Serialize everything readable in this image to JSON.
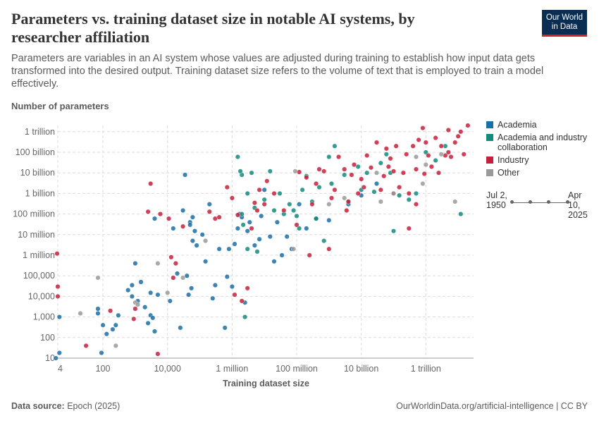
{
  "header": {
    "title": "Parameters vs. training dataset size in notable AI systems, by researcher affiliation",
    "subtitle": "Parameters are variables in an AI system whose values are adjusted during training to establish how input data gets transformed into the desired output. Training dataset size refers to the volume of text that is employed to train a model effectively.",
    "logo_line1": "Our World",
    "logo_line2": "in Data"
  },
  "legend": {
    "items": [
      {
        "label": "Academia",
        "color": "#1a6fa3"
      },
      {
        "label": "Academia and industry collaboration",
        "color": "#148a7c"
      },
      {
        "label": "Industry",
        "color": "#c5203b"
      },
      {
        "label": "Other",
        "color": "#9a9a9a"
      }
    ]
  },
  "timeline": {
    "start": "Jul 2, 1950",
    "end": "Apr 10, 2025"
  },
  "footer": {
    "source_label": "Data source:",
    "source": "Epoch (2025)",
    "url": "OurWorldinData.org/artificial-intelligence | CC BY"
  },
  "chart_data": {
    "type": "scatter",
    "title": "Parameters vs. training dataset size in notable AI systems, by researcher affiliation",
    "xlabel": "Training dataset size",
    "ylabel": "Number of parameters",
    "x_scale": "log",
    "y_scale": "log",
    "xlim": [
      4,
      30000000000000
    ],
    "ylim": [
      10,
      2000000000000
    ],
    "x_ticks": [
      {
        "value": 4,
        "label": "4"
      },
      {
        "value": 100,
        "label": "100"
      },
      {
        "value": 10000,
        "label": "10,000"
      },
      {
        "value": 1000000,
        "label": "1 million"
      },
      {
        "value": 100000000,
        "label": "100 million"
      },
      {
        "value": 10000000000,
        "label": "10 billion"
      },
      {
        "value": 1000000000000,
        "label": "1 trillion"
      }
    ],
    "y_ticks": [
      {
        "value": 10,
        "label": "10"
      },
      {
        "value": 100,
        "label": "100"
      },
      {
        "value": 1000,
        "label": "1,000"
      },
      {
        "value": 10000,
        "label": "10,000"
      },
      {
        "value": 100000,
        "label": "100,000"
      },
      {
        "value": 1000000,
        "label": "1 million"
      },
      {
        "value": 10000000,
        "label": "10 million"
      },
      {
        "value": 100000000,
        "label": "100 million"
      },
      {
        "value": 1000000000,
        "label": "1 billion"
      },
      {
        "value": 10000000000,
        "label": "10 billion"
      },
      {
        "value": 100000000000,
        "label": "100 billion"
      },
      {
        "value": 1000000000000,
        "label": "1 trillion"
      }
    ],
    "series": [
      {
        "name": "Academia",
        "color": "#1a6fa3",
        "points": [
          [
            3.5,
            10
          ],
          [
            4.5,
            18
          ],
          [
            4.5,
            1000
          ],
          [
            70,
            1500
          ],
          [
            70,
            2500
          ],
          [
            90,
            18
          ],
          [
            100,
            400
          ],
          [
            130,
            150
          ],
          [
            200,
            250
          ],
          [
            250,
            400
          ],
          [
            300,
            1200
          ],
          [
            600,
            20000
          ],
          [
            800,
            10000
          ],
          [
            800,
            35000
          ],
          [
            1000,
            400000
          ],
          [
            1200,
            6000
          ],
          [
            1500,
            50000
          ],
          [
            2000,
            3000
          ],
          [
            2500,
            500
          ],
          [
            3000,
            15000
          ],
          [
            3000,
            1200
          ],
          [
            3500,
            900
          ],
          [
            4000,
            60000000
          ],
          [
            4000,
            200
          ],
          [
            5000,
            12000
          ],
          [
            12000,
            6000
          ],
          [
            15000,
            20000000
          ],
          [
            20000,
            130000
          ],
          [
            25000,
            300
          ],
          [
            30000,
            150000000
          ],
          [
            35000,
            8000000000
          ],
          [
            40000,
            100000
          ],
          [
            45000,
            12000
          ],
          [
            50000,
            40000000
          ],
          [
            50000,
            30000000
          ],
          [
            55000,
            25000
          ],
          [
            60000,
            5000000
          ],
          [
            60000,
            70000000
          ],
          [
            70000,
            15000000
          ],
          [
            80000,
            3000000
          ],
          [
            120000,
            10000000
          ],
          [
            150000,
            500000
          ],
          [
            200000,
            300000000
          ],
          [
            250000,
            8000
          ],
          [
            300000,
            35000
          ],
          [
            400000,
            2000000
          ],
          [
            600000,
            300
          ],
          [
            700000,
            90000
          ],
          [
            800000,
            2000000
          ],
          [
            1000000,
            30000
          ],
          [
            1200000,
            3500000
          ],
          [
            1500000,
            20000000
          ],
          [
            1700000,
            100000000
          ],
          [
            2000000,
            70000000
          ],
          [
            2500000,
            5000
          ],
          [
            3000000,
            15000000
          ],
          [
            3500000,
            40000000
          ],
          [
            5000000,
            3000000
          ],
          [
            7000000,
            6000000
          ],
          [
            8000000,
            80000000
          ],
          [
            10000000,
            1500000000
          ],
          [
            15000000,
            8000000
          ],
          [
            20000000,
            500000
          ],
          [
            25000000,
            40000000
          ],
          [
            35000000,
            1000000
          ],
          [
            50000000,
            8000000
          ],
          [
            70000000,
            2000000
          ],
          [
            120000000,
            300000000
          ],
          [
            200000000,
            20000000
          ],
          [
            400000000,
            60000000
          ],
          [
            1000000000,
            50000000
          ],
          [
            4000000000,
            300000000
          ],
          [
            10000000000,
            800000000
          ],
          [
            30000000000,
            3000000000
          ]
        ]
      },
      {
        "name": "Academia and industry collaboration",
        "color": "#148a7c",
        "points": [
          [
            2000000,
            8000000000
          ],
          [
            1500000,
            60000000000
          ],
          [
            1800000,
            12000000000
          ],
          [
            2000000,
            100000000
          ],
          [
            2200000,
            30000000
          ],
          [
            2500000,
            1000
          ],
          [
            3000000,
            2000000
          ],
          [
            3000000,
            1000000000
          ],
          [
            4000000,
            10000000000
          ],
          [
            5000000,
            200000000
          ],
          [
            6000000,
            1500000
          ],
          [
            10000000,
            500000000
          ],
          [
            15000000,
            12000000000
          ],
          [
            20000000,
            150000000
          ],
          [
            30000000,
            1000000000
          ],
          [
            40000000,
            100000000
          ],
          [
            60000000,
            300000000
          ],
          [
            80000000,
            150000000
          ],
          [
            100000000,
            80000000
          ],
          [
            120000000,
            20000000
          ],
          [
            150000000,
            1500000000
          ],
          [
            200000000,
            7000000000
          ],
          [
            300000000,
            400000000
          ],
          [
            400000000,
            60000000
          ],
          [
            500000000,
            2000000000
          ],
          [
            700000000,
            5000000
          ],
          [
            1000000000,
            60000000000
          ],
          [
            1200000000,
            3000000000
          ],
          [
            1500000000,
            200000000000
          ],
          [
            3000000000,
            8000000000
          ],
          [
            4000000000,
            400000000
          ],
          [
            8000000000,
            20000000000
          ],
          [
            10000000000,
            1500000000
          ],
          [
            15000000000,
            10000000000
          ],
          [
            25000000000,
            1200000000
          ],
          [
            40000000000,
            30000000000
          ],
          [
            60000000000,
            80000000000
          ],
          [
            80000000000,
            10000000000
          ],
          [
            100000000000,
            15000000
          ],
          [
            150000000000,
            800000000
          ],
          [
            300000000000,
            500000000
          ],
          [
            500000000000,
            1000000000
          ],
          [
            1000000000000,
            100000000000
          ],
          [
            2000000000000,
            40000000000
          ],
          [
            4000000000000,
            200000000000
          ],
          [
            12000000000000,
            100000000
          ]
        ]
      },
      {
        "name": "Industry",
        "color": "#c5203b",
        "points": [
          [
            3.8,
            1200000
          ],
          [
            4,
            30000
          ],
          [
            4,
            10000
          ],
          [
            30,
            40
          ],
          [
            170,
            2000
          ],
          [
            900,
            800
          ],
          [
            1000,
            2500
          ],
          [
            2500,
            130000000
          ],
          [
            3000,
            3000000000
          ],
          [
            5000,
            16
          ],
          [
            6000,
            100000000
          ],
          [
            11000,
            60000000
          ],
          [
            13000,
            800000
          ],
          [
            15000,
            80000
          ],
          [
            18000,
            400000
          ],
          [
            30000,
            25000000
          ],
          [
            200000,
            130000000
          ],
          [
            300000,
            60000000
          ],
          [
            400000,
            70000000
          ],
          [
            700000,
            2000000000
          ],
          [
            1000000,
            600000000
          ],
          [
            1200000,
            12000
          ],
          [
            1500000,
            90000000
          ],
          [
            2000000,
            6000
          ],
          [
            3000000,
            25000
          ],
          [
            4000000,
            20000000
          ],
          [
            5000000,
            350000000
          ],
          [
            6000000,
            150000000
          ],
          [
            7000000,
            1500000000
          ],
          [
            10000000,
            300000000
          ],
          [
            12000000,
            4000000000
          ],
          [
            20000000,
            1000000000
          ],
          [
            40000000,
            150000000
          ],
          [
            100000000,
            30000000
          ],
          [
            120000000,
            11000000000
          ],
          [
            200000000,
            6000000000
          ],
          [
            250000000,
            1000000
          ],
          [
            300000000,
            300000000
          ],
          [
            400000000,
            3000000000
          ],
          [
            500000000,
            15000000000
          ],
          [
            700000000,
            12000000000
          ],
          [
            1000000000,
            2000000
          ],
          [
            1200000000,
            600000000
          ],
          [
            1500000000,
            1500000000
          ],
          [
            2000000000,
            60000000000
          ],
          [
            3000000000,
            15000000000
          ],
          [
            3500000000,
            150000000
          ],
          [
            4000000000,
            400000000
          ],
          [
            5000000000,
            8000000000
          ],
          [
            6000000000,
            25000000000
          ],
          [
            8000000000,
            1000000000
          ],
          [
            10000000000,
            5000000000
          ],
          [
            12000000000,
            2000000000
          ],
          [
            15000000000,
            70000000000
          ],
          [
            20000000000,
            18000000000
          ],
          [
            30000000000,
            300000000000
          ],
          [
            40000000000,
            1500000000
          ],
          [
            50000000000,
            7000000000
          ],
          [
            60000000000,
            150000000000
          ],
          [
            70000000000,
            20000000000
          ],
          [
            80000000000,
            50000000000
          ],
          [
            100000000000,
            12000000000
          ],
          [
            120000000000,
            200000000000
          ],
          [
            150000000000,
            2000000000
          ],
          [
            200000000000,
            10000000000
          ],
          [
            250000000000,
            80000000000
          ],
          [
            300000000000,
            1000000000
          ],
          [
            400000000000,
            200000000000
          ],
          [
            500000000000,
            15000000000
          ],
          [
            600000000000,
            400000000000
          ],
          [
            800000000000,
            1500000000000
          ],
          [
            900000000000,
            9000000000
          ],
          [
            1000000000000,
            300000000000
          ],
          [
            1200000000000,
            70000000000
          ],
          [
            1500000000000,
            20000000000
          ],
          [
            2000000000000,
            500000000000
          ],
          [
            2500000000000,
            10000000000
          ],
          [
            3000000000000,
            200000000000
          ],
          [
            4000000000000,
            70000000000
          ],
          [
            5000000000000,
            100000000000
          ],
          [
            6000000000000,
            60000000000
          ],
          [
            8000000000000,
            300000000000
          ],
          [
            10000000000000,
            600000000000
          ],
          [
            15000000000000,
            80000000000
          ],
          [
            20000000000000,
            2000000000000
          ],
          [
            12000000000000,
            1000000000000
          ],
          [
            5000000000000,
            1200000000000
          ],
          [
            300000000000,
            20000000
          ],
          [
            500000000000,
            300000000
          ],
          [
            100000000000,
            1000000000
          ]
        ]
      },
      {
        "name": "Other",
        "color": "#9a9a9a",
        "points": [
          [
            20,
            1500
          ],
          [
            70,
            80000
          ],
          [
            250,
            40
          ],
          [
            1000,
            5000
          ],
          [
            1200,
            4000
          ],
          [
            5000,
            400000
          ],
          [
            10000,
            15000
          ],
          [
            30000,
            80000
          ],
          [
            150000,
            5000000
          ],
          [
            80000000,
            2000000
          ],
          [
            90000000,
            12000000000
          ],
          [
            1000000000,
            300000000
          ],
          [
            3000000000,
            600000000
          ],
          [
            30000000000,
            10000000000
          ],
          [
            40000000000,
            400000000
          ],
          [
            100000000000,
            1000000000
          ],
          [
            500000000000,
            60000000000
          ],
          [
            800000000000,
            3000000000
          ],
          [
            1000000000000,
            25000000000
          ],
          [
            3000000000000,
            80000000000
          ],
          [
            8000000000000,
            400000000
          ]
        ]
      }
    ]
  }
}
